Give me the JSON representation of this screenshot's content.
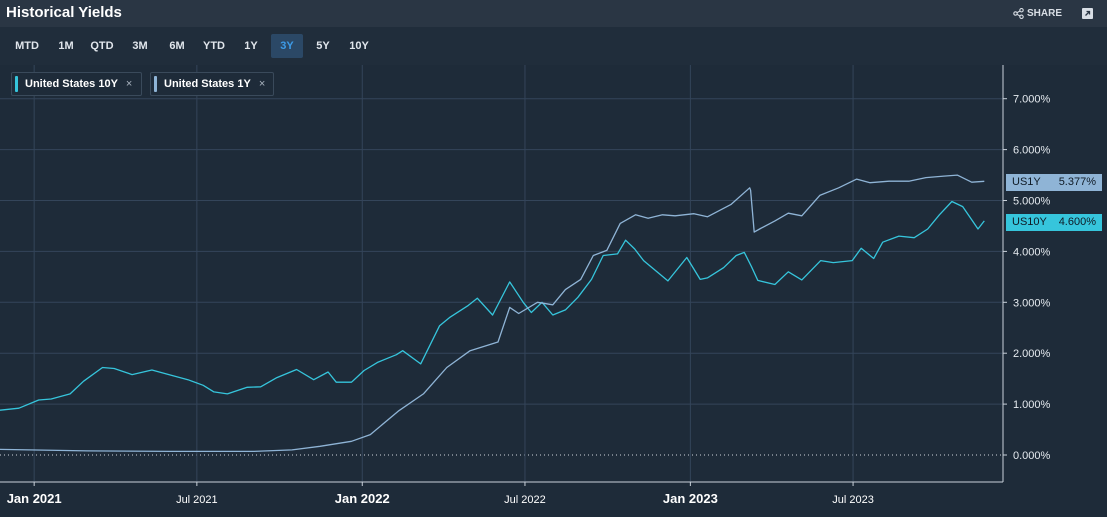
{
  "header": {
    "title": "Historical Yields",
    "share_label": "SHARE"
  },
  "ranges": [
    "MTD",
    "1M",
    "QTD",
    "3M",
    "6M",
    "YTD",
    "1Y",
    "3Y",
    "5Y",
    "10Y"
  ],
  "active_range": "3Y",
  "legend": [
    {
      "label": "United States 10Y",
      "color": "#36c5dc",
      "close": "×"
    },
    {
      "label": "United States 1Y",
      "color": "#8fb4d6",
      "close": "×"
    }
  ],
  "tags": [
    {
      "name": "US1Y",
      "value": "5.377%",
      "color": "#8fb4d6"
    },
    {
      "name": "US10Y",
      "value": "4.600%",
      "color": "#36c5dc"
    }
  ],
  "colors": {
    "background": "#1e2b39",
    "grid": "#34455a",
    "us10y": "#36c5dc",
    "us1y": "#8fb4d6"
  },
  "chart_data": {
    "type": "line",
    "title": "Historical Yields",
    "x_type": "date",
    "xlim": [
      "2020-11-24",
      "2023-11-27"
    ],
    "ylim": [
      -0.2,
      7.6
    ],
    "y_ticks": [
      "7.000%",
      "6.000%",
      "5.000%",
      "4.000%",
      "3.000%",
      "2.000%",
      "1.000%",
      "0.000%"
    ],
    "x_ticks": [
      "Jan 2021",
      "Jul 2021",
      "Jan 2022",
      "Jul 2022",
      "Jan 2023",
      "Jul 2023"
    ],
    "grid": true,
    "legend_position": "top-left",
    "series": [
      {
        "name": "United States 10Y",
        "x": [
          "2020-11-24",
          "2020-12-15",
          "2021-01-06",
          "2021-01-20",
          "2021-02-10",
          "2021-02-25",
          "2021-03-18",
          "2021-03-31",
          "2021-04-20",
          "2021-05-12",
          "2021-06-04",
          "2021-06-21",
          "2021-07-08",
          "2021-07-20",
          "2021-08-04",
          "2021-08-26",
          "2021-09-10",
          "2021-09-28",
          "2021-10-20",
          "2021-11-08",
          "2021-11-24",
          "2021-12-03",
          "2021-12-20",
          "2022-01-03",
          "2022-01-18",
          "2022-02-08",
          "2022-02-15",
          "2022-03-07",
          "2022-03-28",
          "2022-04-08",
          "2022-04-29",
          "2022-05-09",
          "2022-05-26",
          "2022-06-14",
          "2022-06-29",
          "2022-07-08",
          "2022-07-20",
          "2022-08-01",
          "2022-08-15",
          "2022-08-29",
          "2022-09-13",
          "2022-09-26",
          "2022-10-12",
          "2022-10-21",
          "2022-10-31",
          "2022-11-10",
          "2022-12-07",
          "2022-12-28",
          "2023-01-12",
          "2023-01-20",
          "2023-02-07",
          "2023-02-21",
          "2023-03-02",
          "2023-03-10",
          "2023-03-17",
          "2023-04-05",
          "2023-04-20",
          "2023-05-05",
          "2023-05-26",
          "2023-06-09",
          "2023-06-30",
          "2023-07-10",
          "2023-07-24",
          "2023-08-03",
          "2023-08-21",
          "2023-09-07",
          "2023-09-22",
          "2023-10-05",
          "2023-10-19",
          "2023-10-31",
          "2023-11-10",
          "2023-11-17",
          "2023-11-24"
        ],
        "values": [
          0.88,
          0.92,
          1.08,
          1.1,
          1.2,
          1.45,
          1.72,
          1.7,
          1.58,
          1.67,
          1.56,
          1.48,
          1.37,
          1.24,
          1.2,
          1.33,
          1.34,
          1.52,
          1.68,
          1.48,
          1.63,
          1.43,
          1.43,
          1.66,
          1.82,
          1.97,
          2.05,
          1.79,
          2.54,
          2.7,
          2.94,
          3.08,
          2.75,
          3.4,
          3.0,
          2.8,
          3.0,
          2.75,
          2.85,
          3.1,
          3.45,
          3.92,
          3.95,
          4.22,
          4.05,
          3.82,
          3.42,
          3.88,
          3.45,
          3.48,
          3.68,
          3.92,
          3.98,
          3.7,
          3.43,
          3.35,
          3.6,
          3.44,
          3.82,
          3.78,
          3.82,
          4.06,
          3.86,
          4.18,
          4.3,
          4.27,
          4.44,
          4.72,
          4.98,
          4.88,
          4.62,
          4.44,
          4.6
        ]
      },
      {
        "name": "United States 1Y",
        "x": [
          "2020-11-24",
          "2021-03-01",
          "2021-06-01",
          "2021-09-01",
          "2021-10-15",
          "2021-11-15",
          "2021-12-20",
          "2022-01-10",
          "2022-02-10",
          "2022-03-10",
          "2022-04-05",
          "2022-05-01",
          "2022-06-01",
          "2022-06-14",
          "2022-06-24",
          "2022-07-15",
          "2022-08-01",
          "2022-08-15",
          "2022-09-01",
          "2022-09-15",
          "2022-09-30",
          "2022-10-15",
          "2022-11-01",
          "2022-11-15",
          "2022-12-01",
          "2022-12-15",
          "2023-01-05",
          "2023-01-20",
          "2023-02-15",
          "2023-03-08",
          "2023-03-09",
          "2023-03-13",
          "2023-03-20",
          "2023-04-05",
          "2023-04-20",
          "2023-05-05",
          "2023-05-25",
          "2023-06-15",
          "2023-07-05",
          "2023-07-20",
          "2023-08-10",
          "2023-09-01",
          "2023-09-20",
          "2023-10-10",
          "2023-10-25",
          "2023-11-10",
          "2023-11-24"
        ],
        "values": [
          0.11,
          0.08,
          0.07,
          0.07,
          0.1,
          0.17,
          0.27,
          0.4,
          0.86,
          1.2,
          1.72,
          2.05,
          2.22,
          2.9,
          2.78,
          3.0,
          2.95,
          3.25,
          3.45,
          3.92,
          4.02,
          4.55,
          4.72,
          4.65,
          4.72,
          4.7,
          4.74,
          4.68,
          4.92,
          5.25,
          5.2,
          4.38,
          4.45,
          4.6,
          4.75,
          4.7,
          5.1,
          5.25,
          5.42,
          5.35,
          5.38,
          5.38,
          5.45,
          5.48,
          5.5,
          5.36,
          5.377
        ]
      }
    ]
  }
}
